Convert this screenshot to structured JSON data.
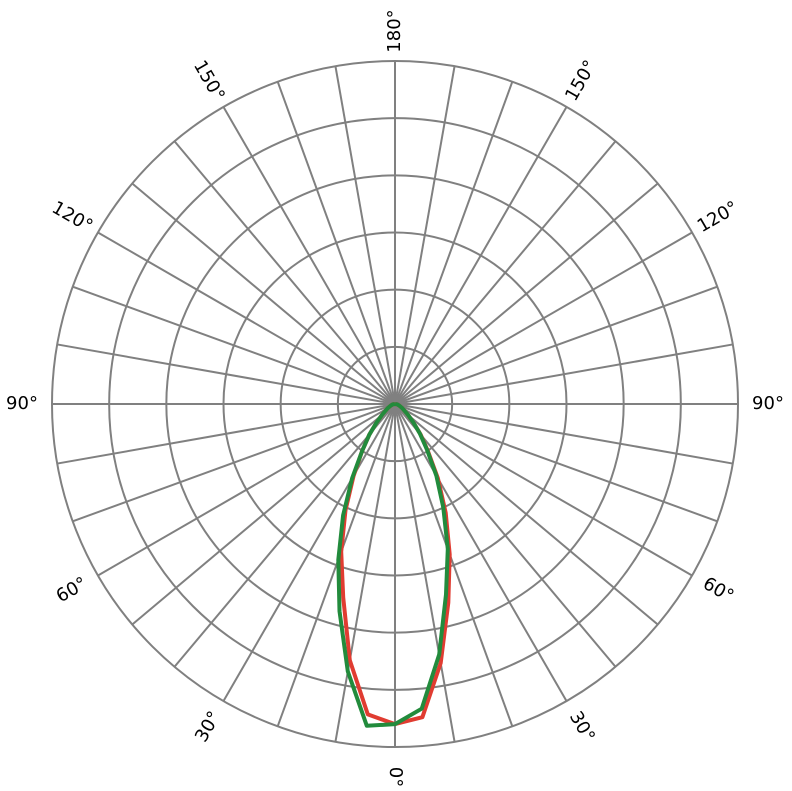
{
  "chart_data": {
    "type": "polar",
    "rlim": [
      0,
      6
    ],
    "rticks": [
      1,
      2,
      3,
      4,
      5,
      6
    ],
    "thetagrid": [
      -170,
      -160,
      -150,
      -140,
      -130,
      -120,
      -110,
      -100,
      -90,
      -80,
      -70,
      -60,
      -50,
      -40,
      -30,
      -20,
      -10,
      0,
      10,
      20,
      30,
      40,
      50,
      60,
      70,
      80,
      90,
      100,
      110,
      120,
      130,
      140,
      150,
      160,
      170,
      180
    ],
    "thetaticks": [
      {
        "value": 0,
        "label": "0°"
      },
      {
        "value": 30,
        "label": "30°"
      },
      {
        "value": 60,
        "label": "60°"
      },
      {
        "value": 90,
        "label": "90°"
      },
      {
        "value": 120,
        "label": "120°"
      },
      {
        "value": 150,
        "label": "150°"
      },
      {
        "value": 180,
        "label": "180°"
      },
      {
        "value": -30,
        "label": "30°"
      },
      {
        "value": -60,
        "label": "60°"
      },
      {
        "value": -90,
        "label": "90°"
      },
      {
        "value": -120,
        "label": "120°"
      },
      {
        "value": -150,
        "label": "150°"
      }
    ],
    "grid_color": "#808080",
    "theta": [
      -90,
      -80,
      -70,
      -60,
      -50,
      -45,
      -40,
      -35,
      -30,
      -25,
      -20,
      -15,
      -10,
      -5,
      0,
      5,
      10,
      15,
      20,
      25,
      30,
      35,
      40,
      45,
      50,
      60,
      70,
      80,
      90
    ],
    "series": [
      {
        "color": "#e03c31",
        "values": [
          0,
          0.04,
          0.08,
          0.15,
          0.3,
          0.45,
          0.7,
          1.0,
          1.45,
          2.05,
          2.75,
          3.5,
          4.55,
          5.45,
          5.6,
          5.5,
          4.6,
          3.6,
          2.8,
          2.1,
          1.5,
          1.0,
          0.7,
          0.45,
          0.3,
          0.15,
          0.08,
          0.04,
          0
        ]
      },
      {
        "color": "#228b3c",
        "values": [
          0,
          0.04,
          0.08,
          0.15,
          0.3,
          0.45,
          0.7,
          1.0,
          1.5,
          2.15,
          2.9,
          3.75,
          4.75,
          5.65,
          5.6,
          5.35,
          4.45,
          3.45,
          2.7,
          2.0,
          1.45,
          0.98,
          0.68,
          0.45,
          0.3,
          0.15,
          0.08,
          0.04,
          0
        ]
      }
    ]
  }
}
